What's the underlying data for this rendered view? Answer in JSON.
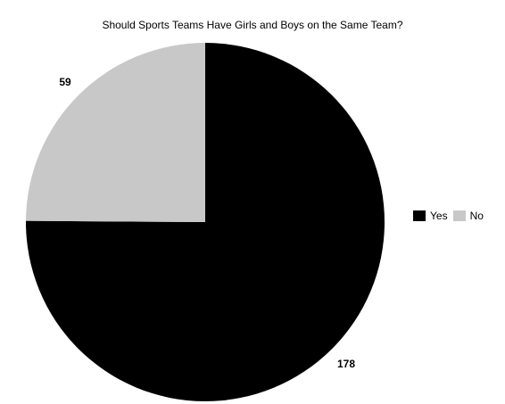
{
  "chart_data": {
    "type": "pie",
    "title": "Should Sports Teams Have Girls and Boys on the Same Team?",
    "categories": [
      "Yes",
      "No"
    ],
    "values": [
      178,
      59
    ],
    "colors": [
      "#000000",
      "#c8c8c8"
    ],
    "legend_position": "right",
    "start": "top",
    "direction": "clockwise"
  }
}
